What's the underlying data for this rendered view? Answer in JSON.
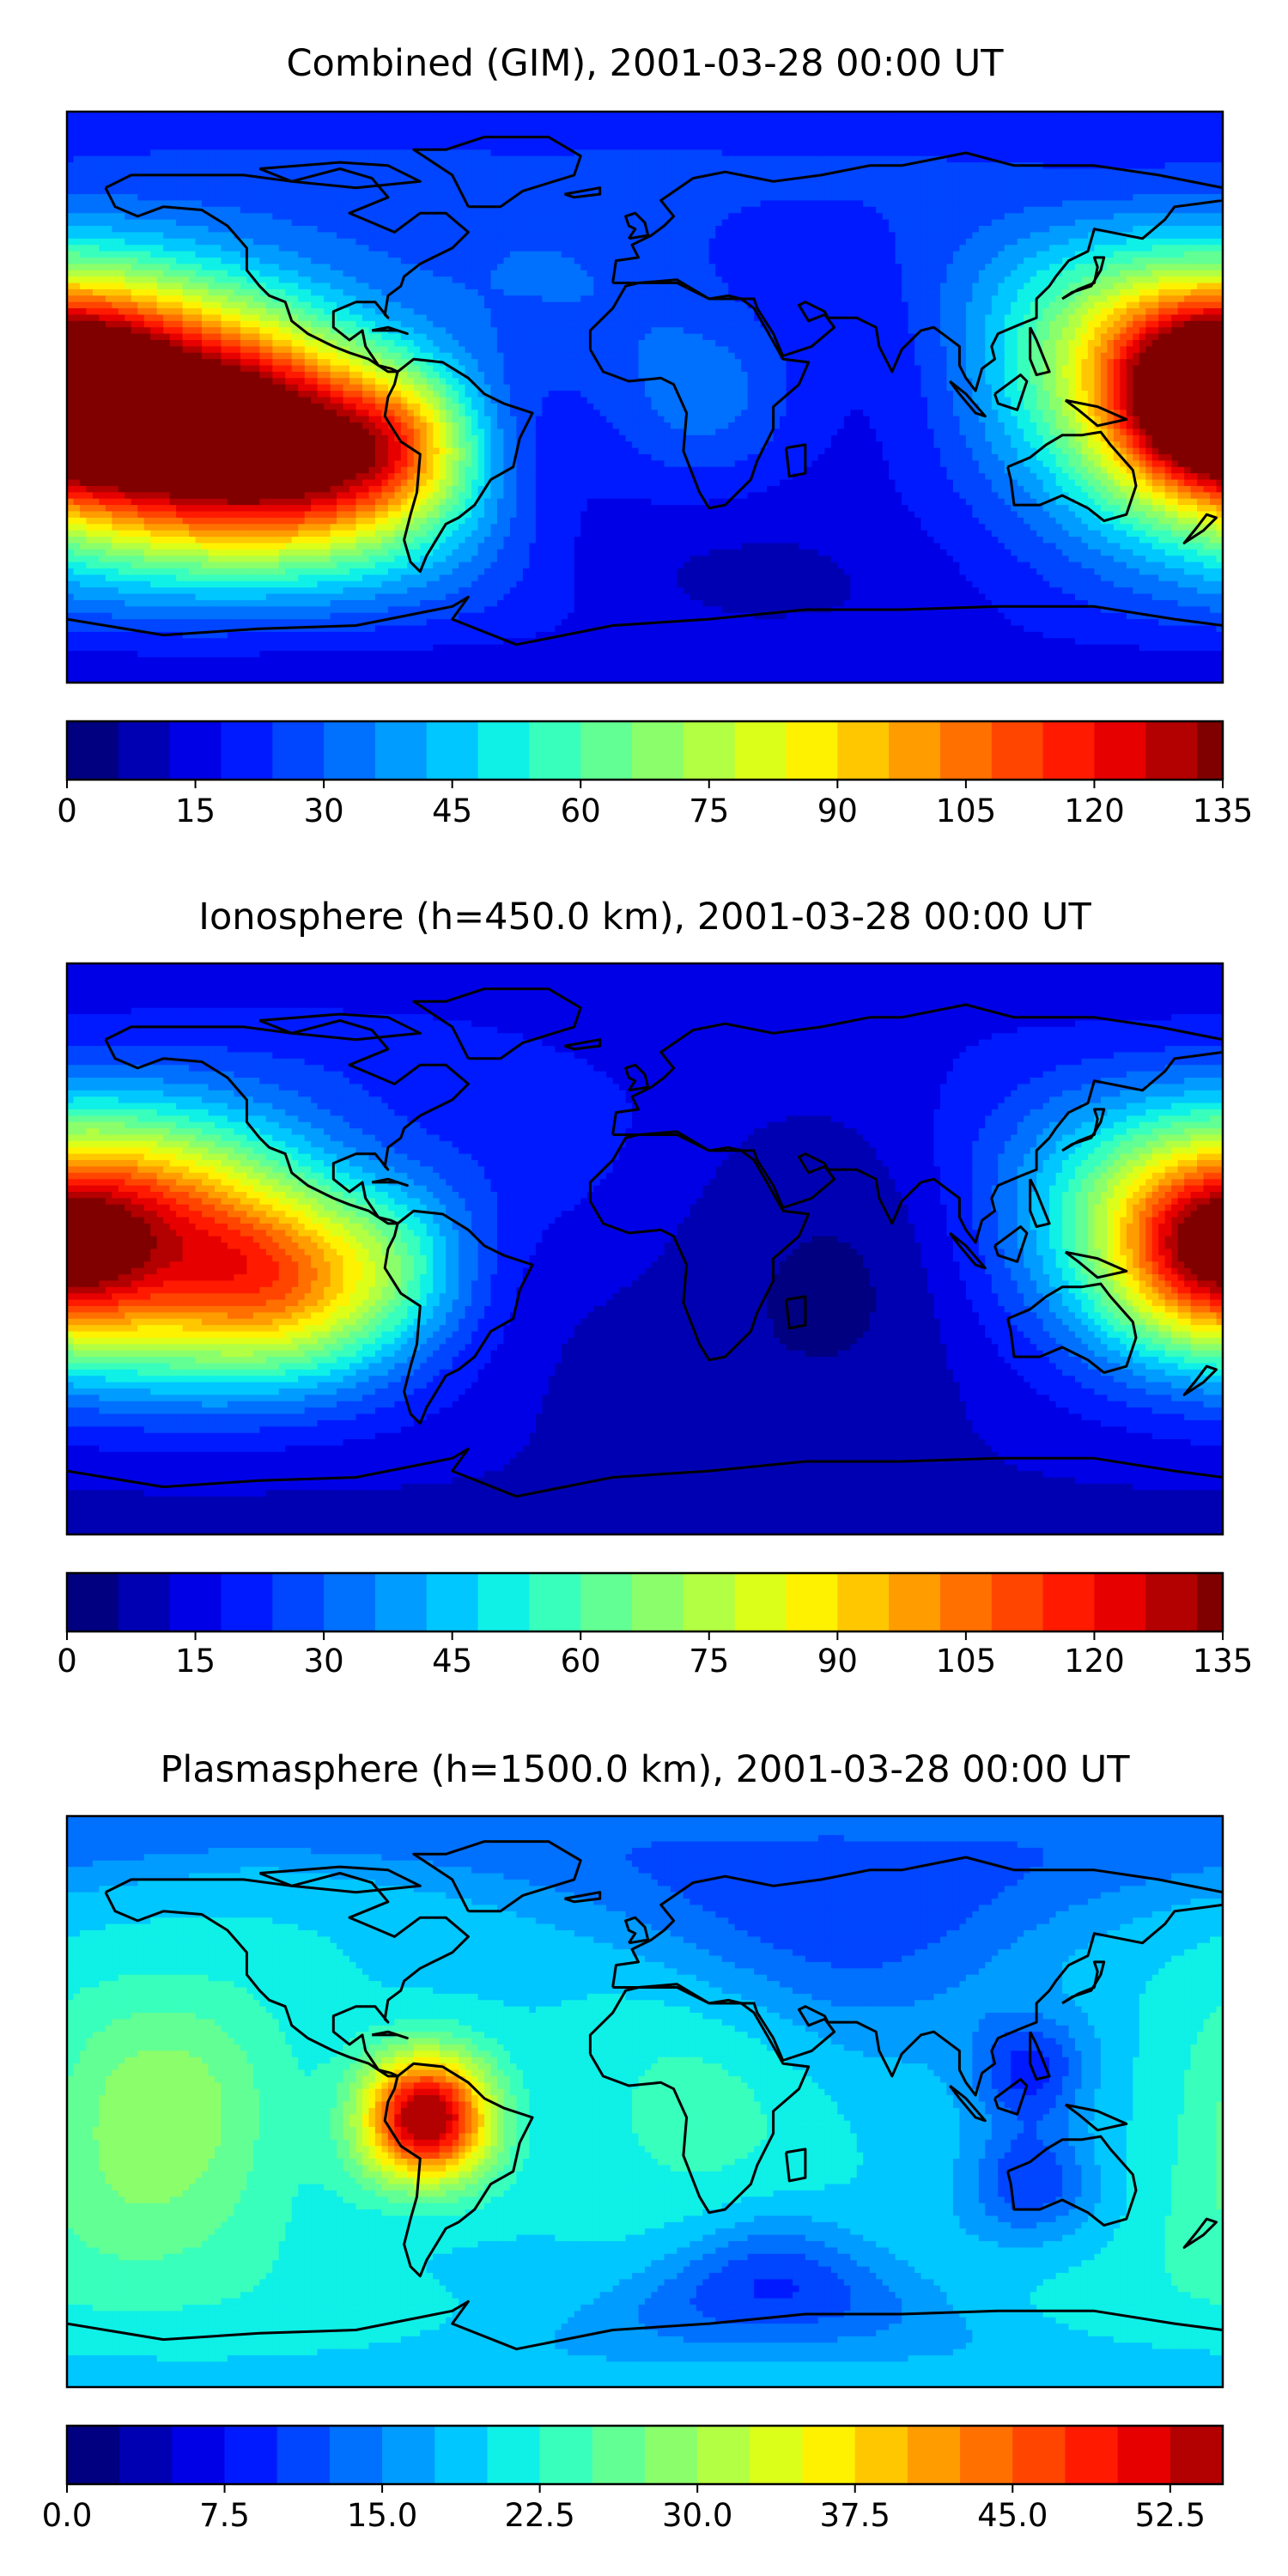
{
  "figure": {
    "colormap": [
      "#000080",
      "#0000b3",
      "#0000e6",
      "#001aff",
      "#0045ff",
      "#0070ff",
      "#009cff",
      "#00c7ff",
      "#0ff0e7",
      "#39ffbd",
      "#62ff94",
      "#8bff6b",
      "#b3ff43",
      "#dcff1a",
      "#fff200",
      "#ffc700",
      "#ff9c00",
      "#ff7000",
      "#ff4500",
      "#ff1a00",
      "#e60000",
      "#b30000",
      "#800000"
    ]
  },
  "chart_data": [
    {
      "type": "heatmap",
      "title": "Combined (GIM), 2001-03-28 00:00 UT",
      "xlabel": "",
      "ylabel": "",
      "quantity_range": [
        0,
        135
      ],
      "colorbar_levels": [
        0,
        6,
        12,
        18,
        24,
        30,
        36,
        42,
        48,
        54,
        60,
        66,
        72,
        78,
        84,
        90,
        96,
        102,
        108,
        114,
        120,
        126,
        132,
        135
      ],
      "colorbar_ticks": [
        "0",
        "15",
        "30",
        "45",
        "60",
        "75",
        "90",
        "105",
        "120",
        "135"
      ],
      "colorbar_tick_values": [
        0,
        15,
        30,
        45,
        60,
        75,
        90,
        105,
        120,
        135
      ],
      "background": 14,
      "features": [
        {
          "lon": -150,
          "lat": -5,
          "sigma": 28,
          "amp": 105
        },
        {
          "lon": -110,
          "lat": -15,
          "sigma": 25,
          "amp": 95
        },
        {
          "lon": -75,
          "lat": -15,
          "sigma": 18,
          "amp": 60
        },
        {
          "lon": 175,
          "lat": 0,
          "sigma": 22,
          "amp": 110
        },
        {
          "lon": 140,
          "lat": 10,
          "sigma": 30,
          "amp": 50
        },
        {
          "lon": 20,
          "lat": 0,
          "sigma": 22,
          "amp": 18
        },
        {
          "lon": -30,
          "lat": 40,
          "sigma": 30,
          "amp": 15
        },
        {
          "lon": 40,
          "lat": -60,
          "sigma": 25,
          "amp": -5
        }
      ]
    },
    {
      "type": "heatmap",
      "title": "Ionosphere  (h=450.0 km), 2001-03-28 00:00 UT",
      "xlabel": "",
      "ylabel": "",
      "quantity_range": [
        0,
        135
      ],
      "colorbar_levels": [
        0,
        6,
        12,
        18,
        24,
        30,
        36,
        42,
        48,
        54,
        60,
        66,
        72,
        78,
        84,
        90,
        96,
        102,
        108,
        114,
        120,
        126,
        132,
        135
      ],
      "colorbar_ticks": [
        "0",
        "15",
        "30",
        "45",
        "60",
        "75",
        "90",
        "105",
        "120",
        "135"
      ],
      "colorbar_tick_values": [
        0,
        15,
        30,
        45,
        60,
        75,
        90,
        105,
        120,
        135
      ],
      "background": 10,
      "features": [
        {
          "lon": -150,
          "lat": 5,
          "sigma": 28,
          "amp": 80
        },
        {
          "lon": -115,
          "lat": -10,
          "sigma": 22,
          "amp": 62
        },
        {
          "lon": -80,
          "lat": -5,
          "sigma": 20,
          "amp": 40
        },
        {
          "lon": 175,
          "lat": 0,
          "sigma": 22,
          "amp": 85
        },
        {
          "lon": 140,
          "lat": 10,
          "sigma": 28,
          "amp": 35
        },
        {
          "lon": 60,
          "lat": -15,
          "sigma": 25,
          "amp": -6
        },
        {
          "lon": -30,
          "lat": 35,
          "sigma": 30,
          "amp": 10
        }
      ]
    },
    {
      "type": "heatmap",
      "title": "Plasmasphere (h=1500.0 km), 2001-03-28 00:00 UT",
      "xlabel": "",
      "ylabel": "",
      "quantity_range": [
        0,
        55
      ],
      "colorbar_levels": [
        0,
        2.5,
        5,
        7.5,
        10,
        12.5,
        15,
        17.5,
        20,
        22.5,
        25,
        27.5,
        30,
        32.5,
        35,
        37.5,
        40,
        42.5,
        45,
        47.5,
        50,
        52.5,
        55
      ],
      "colorbar_ticks": [
        "0.0",
        "7.5",
        "15.0",
        "22.5",
        "30.0",
        "37.5",
        "45.0",
        "52.5"
      ],
      "colorbar_tick_values": [
        0,
        7.5,
        15,
        22.5,
        30,
        37.5,
        45,
        52.5
      ],
      "background": 19,
      "features": [
        {
          "lon": -68,
          "lat": -5,
          "sigma": 14,
          "amp": 38
        },
        {
          "lon": -150,
          "lat": 0,
          "sigma": 28,
          "amp": 10
        },
        {
          "lon": 20,
          "lat": 0,
          "sigma": 30,
          "amp": 5
        },
        {
          "lon": 60,
          "lat": 60,
          "sigma": 30,
          "amp": -9
        },
        {
          "lon": 120,
          "lat": 10,
          "sigma": 12,
          "amp": -10
        },
        {
          "lon": 120,
          "lat": -25,
          "sigma": 12,
          "amp": -9
        },
        {
          "lon": 40,
          "lat": -58,
          "sigma": 15,
          "amp": -10
        },
        {
          "lon": -160,
          "lat": -45,
          "sigma": 25,
          "amp": 4
        }
      ]
    }
  ]
}
